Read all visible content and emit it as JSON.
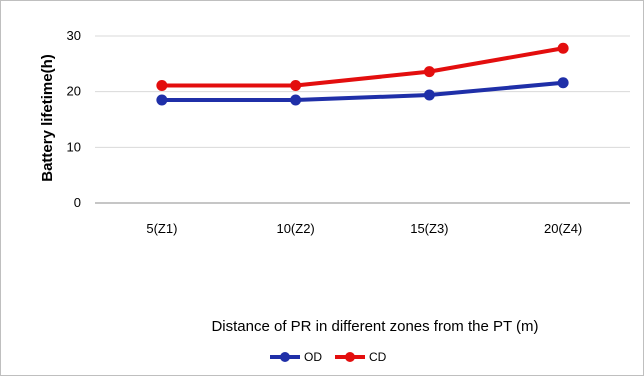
{
  "chart_data": {
    "type": "line",
    "title": "",
    "xlabel": "Distance of PR in different zones from the PT (m)",
    "ylabel": "Battery lifetime(h)",
    "categories": [
      "5(Z1)",
      "10(Z2)",
      "15(Z3)",
      "20(Z4)"
    ],
    "ylim": [
      0,
      30
    ],
    "yticks": [
      0,
      10,
      20,
      30
    ],
    "grid": true,
    "legend": "bottom-center",
    "series": [
      {
        "name": "OD",
        "color": "#1f2fa8",
        "values": [
          18.5,
          18.5,
          19.4,
          21.6
        ]
      },
      {
        "name": "CD",
        "color": "#e30e0e",
        "values": [
          21.1,
          21.1,
          23.6,
          27.8
        ]
      }
    ]
  }
}
